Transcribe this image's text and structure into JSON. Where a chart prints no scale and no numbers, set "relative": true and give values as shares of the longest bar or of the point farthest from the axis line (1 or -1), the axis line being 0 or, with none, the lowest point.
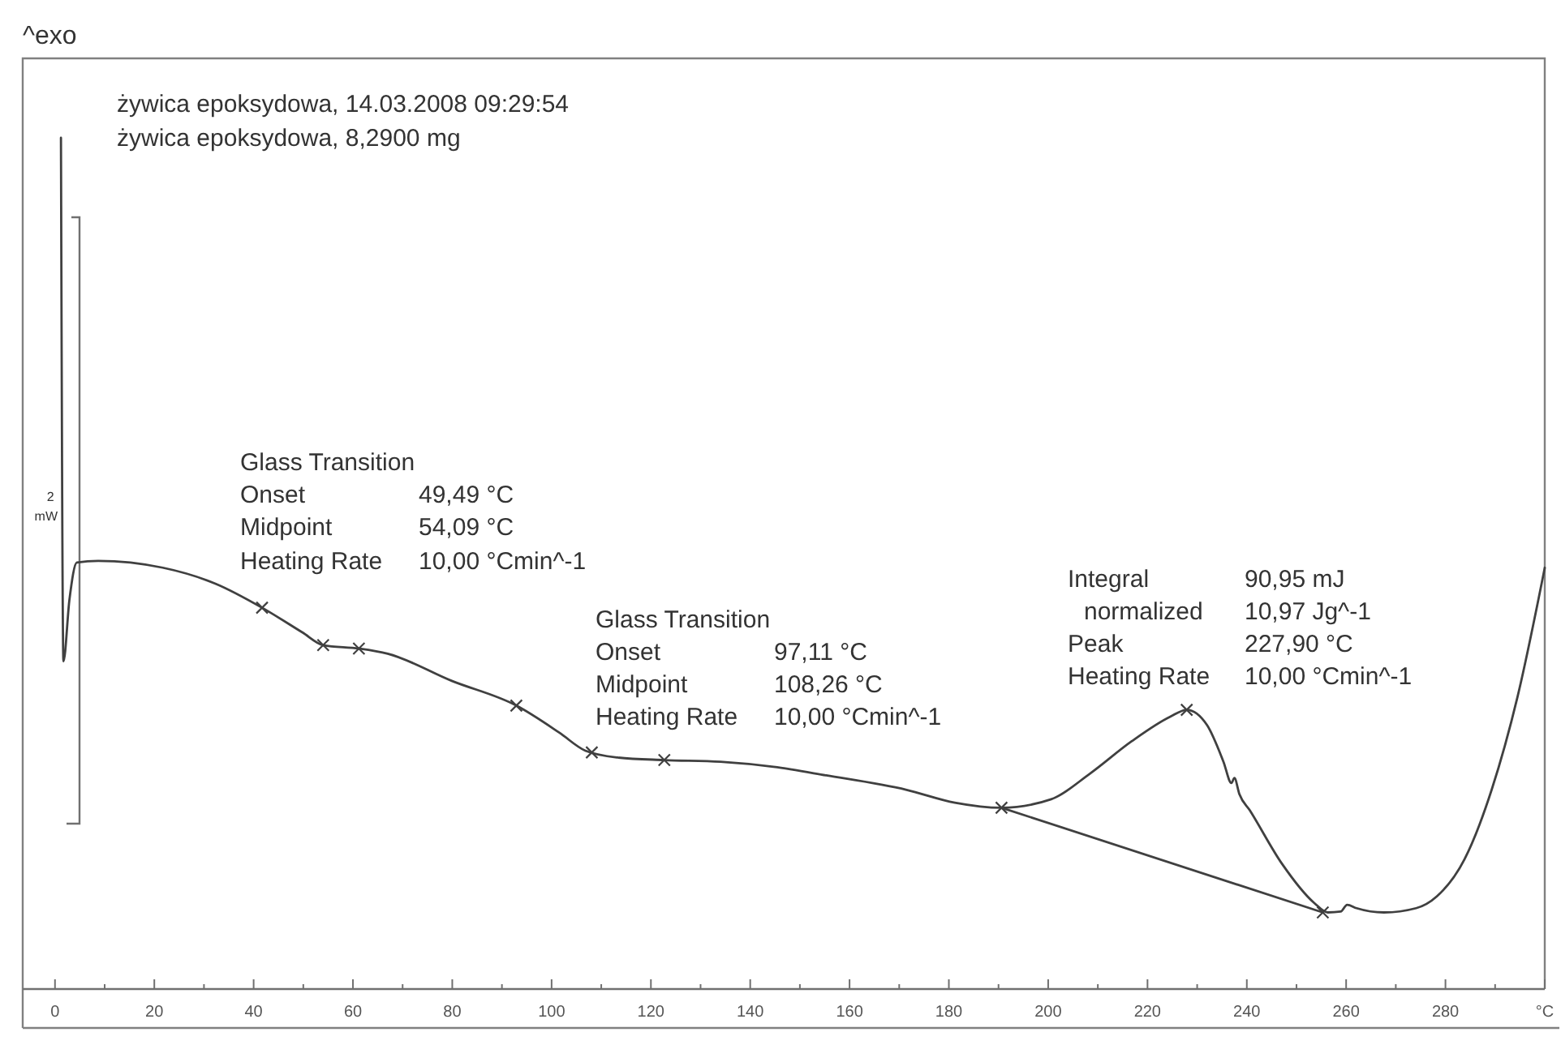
{
  "chart_data": {
    "type": "line",
    "title": "żywica epoksydowa, 14.03.2008 09:29:54",
    "subtitle": "żywica epoksydowa, 8,2900 mg",
    "ylabel": "^exo",
    "relative": true,
    "xlim": [
      -6.5,
      300
    ],
    "xticks": [
      0,
      {
        "value": 10,
        "label": null
      },
      20,
      {
        "value": 30,
        "label": null
      },
      40,
      {
        "value": 50,
        "label": null
      },
      60,
      {
        "value": 70,
        "label": null
      },
      80,
      {
        "value": 90,
        "label": null
      },
      100,
      {
        "value": 110,
        "label": null
      },
      120,
      {
        "value": 130,
        "label": null
      },
      140,
      {
        "value": 150,
        "label": null
      },
      160,
      {
        "value": 170,
        "label": null
      },
      180,
      {
        "value": 190,
        "label": null
      },
      200,
      {
        "value": 210,
        "label": null
      },
      220,
      {
        "value": 230,
        "label": null
      },
      240,
      {
        "value": 250,
        "label": null
      },
      260,
      {
        "value": 270,
        "label": null
      },
      280,
      {
        "value": 290,
        "label": null
      },
      {
        "value": 300,
        "label": "°C"
      }
    ],
    "series": [
      {
        "color": "#404040",
        "x": [
          1.2,
          1.7,
          2.9,
          4.4,
          8.7,
          21.7,
          32.4,
          41.7,
          49.8,
          54.0,
          61.2,
          67.0,
          79.9,
          92.9,
          101.6,
          106.8,
          113.3,
          122.7,
          134.0,
          144.7,
          155.3,
          171.5,
          181.2,
          190.6,
          200.6,
          208.4,
          216.8,
          224.6,
          227.9,
          232.0,
          235.3,
          236.9,
          237.5,
          238.5,
          240.6,
          247.1,
          253.6,
          256.3,
          258.9,
          260.2,
          262.1,
          267.6,
          274.1,
          278.3,
          283.8,
          289.3,
          294.5,
          300.0
        ],
        "values": [
          1.0,
          0.385,
          0.457,
          0.501,
          0.503,
          0.495,
          0.476,
          0.448,
          0.419,
          0.404,
          0.4,
          0.394,
          0.362,
          0.333,
          0.301,
          0.28,
          0.272,
          0.269,
          0.267,
          0.261,
          0.251,
          0.234,
          0.219,
          0.213,
          0.223,
          0.253,
          0.291,
          0.32,
          0.328,
          0.31,
          0.267,
          0.242,
          0.248,
          0.229,
          0.21,
          0.147,
          0.101,
          0.09,
          0.091,
          0.099,
          0.095,
          0.09,
          0.095,
          0.109,
          0.152,
          0.234,
          0.343,
          0.495
        ]
      },
      {
        "type": "line",
        "color": "#404040",
        "x": [
          190.6,
          255.3
        ],
        "values": [
          0.213,
          0.09
        ]
      },
      {
        "type": "scatter",
        "marker": "cross",
        "color": "#404040",
        "x": [
          41.7,
          54.0,
          61.2,
          92.9,
          108.1,
          122.7,
          190.6,
          227.9,
          255.3
        ],
        "values": [
          0.448,
          0.404,
          0.4,
          0.333,
          0.278,
          0.269,
          0.213,
          0.328,
          0.09
        ]
      }
    ],
    "annotations": [
      "2 mW",
      "Glass Transition",
      "Onset\t49,49 °C",
      "Midpoint\t54,09 °C",
      "Heating Rate\t10,00 °Cmin^-1",
      "Glass Transition",
      "Onset\t97,11 °C",
      "Midpoint\t108,26 °C",
      "Heating Rate\t10,00 °Cmin^-1",
      "Integral\t90,95 mJ",
      "normalized\t10,97 Jg^-1",
      "Peak\t227,90 °C",
      "Heating Rate\t10,00 °Cmin^-1"
    ]
  }
}
